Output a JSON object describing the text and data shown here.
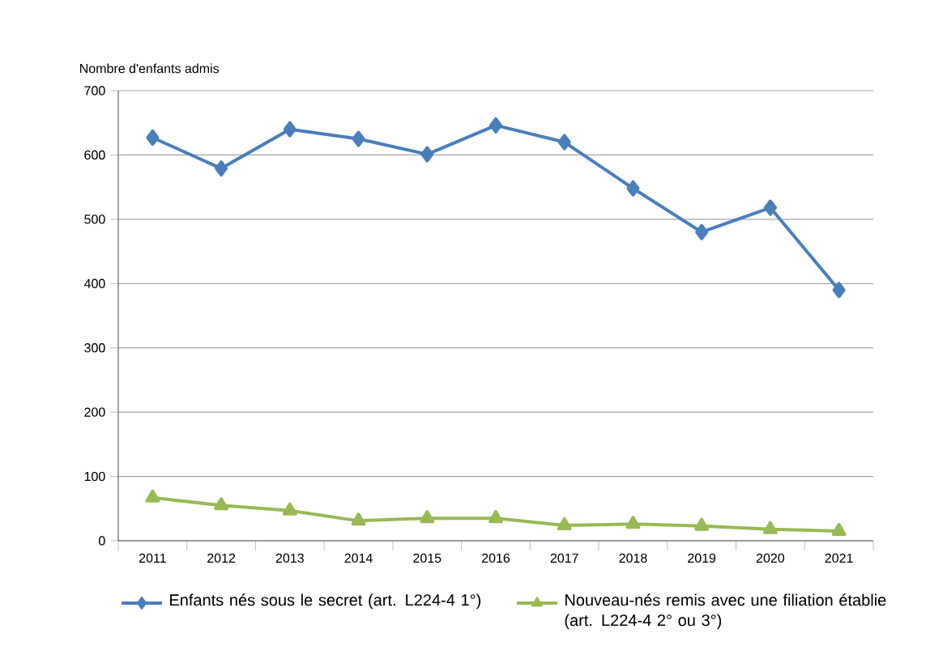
{
  "chart_data": {
    "type": "line",
    "ylabel": "Nombre d'enfants admis",
    "categories": [
      "2011",
      "2012",
      "2013",
      "2014",
      "2015",
      "2016",
      "2017",
      "2018",
      "2019",
      "2020",
      "2021"
    ],
    "series": [
      {
        "name": "Enfants nés sous le secret (art. L224-4 1°)",
        "color": "#4a7ebb",
        "marker": "diamond",
        "values": [
          627,
          579,
          640,
          625,
          601,
          646,
          620,
          548,
          480,
          518,
          390
        ]
      },
      {
        "name": "Nouveau-nés remis avec une filiation établie (art. L224-4 2° ou 3°)",
        "color": "#98b954",
        "marker": "triangle",
        "values": [
          67,
          55,
          47,
          31,
          35,
          35,
          24,
          26,
          23,
          18,
          15
        ]
      }
    ],
    "ylim": [
      0,
      700
    ],
    "yticks": [
      0,
      100,
      200,
      300,
      400,
      500,
      600,
      700
    ],
    "grid": "y",
    "legend": "bottom",
    "line_style": "solid"
  }
}
